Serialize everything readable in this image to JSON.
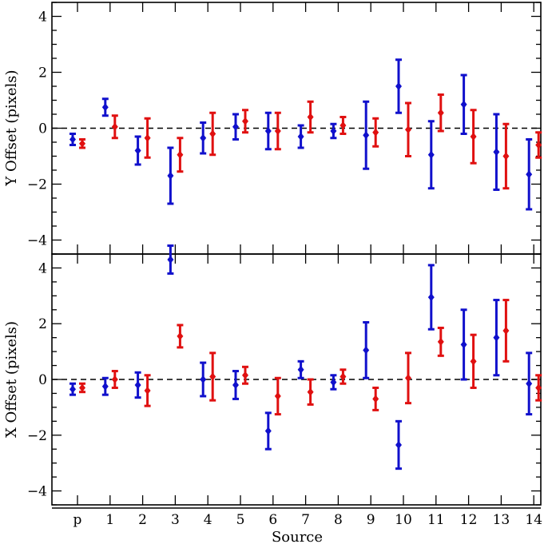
{
  "chart_data": [
    {
      "type": "scatter",
      "panel": "top",
      "ylabel": "Y Offset (pixels)",
      "xlabel": "",
      "ylim": [
        -4.5,
        4.5
      ],
      "yticks": [
        -4,
        -2,
        0,
        2,
        4
      ],
      "categories": [
        "p",
        "1",
        "2",
        "3",
        "4",
        "5",
        "6",
        "7",
        "8",
        "9",
        "10",
        "11",
        "12",
        "13",
        "14"
      ],
      "reference_line": 0,
      "series": [
        {
          "name": "blue",
          "color": "#1010cc",
          "values": [
            -0.4,
            0.75,
            -0.8,
            -1.7,
            -0.35,
            0.05,
            -0.1,
            -0.3,
            -0.1,
            -0.25,
            1.5,
            -0.95,
            0.85,
            -0.85,
            -1.65
          ],
          "errors": [
            0.2,
            0.3,
            0.5,
            1.0,
            0.55,
            0.45,
            0.65,
            0.4,
            0.25,
            1.2,
            0.95,
            1.2,
            1.05,
            1.35,
            1.25
          ]
        },
        {
          "name": "red",
          "color": "#e01010",
          "values": [
            -0.55,
            0.05,
            -0.35,
            -0.95,
            -0.2,
            0.25,
            -0.1,
            0.4,
            0.1,
            -0.15,
            -0.05,
            0.55,
            -0.3,
            -1.0,
            -0.6
          ],
          "errors": [
            0.15,
            0.4,
            0.7,
            0.6,
            0.75,
            0.4,
            0.65,
            0.55,
            0.3,
            0.5,
            0.95,
            0.65,
            0.95,
            1.15,
            0.45
          ]
        }
      ]
    },
    {
      "type": "scatter",
      "panel": "bottom",
      "ylabel": "X Offset (pixels)",
      "xlabel": "Source",
      "ylim": [
        -4.5,
        4.5
      ],
      "yticks": [
        -4,
        -2,
        0,
        2,
        4
      ],
      "categories": [
        "p",
        "1",
        "2",
        "3",
        "4",
        "5",
        "6",
        "7",
        "8",
        "9",
        "10",
        "11",
        "12",
        "13",
        "14"
      ],
      "reference_line": 0,
      "series": [
        {
          "name": "blue",
          "color": "#1010cc",
          "values": [
            -0.35,
            -0.25,
            -0.2,
            4.3,
            0.0,
            -0.2,
            -1.85,
            0.35,
            -0.1,
            1.05,
            -2.35,
            2.95,
            1.25,
            1.5,
            -0.15
          ],
          "errors": [
            0.2,
            0.3,
            0.45,
            0.5,
            0.6,
            0.5,
            0.65,
            0.3,
            0.25,
            1.0,
            0.85,
            1.15,
            1.25,
            1.35,
            1.1
          ]
        },
        {
          "name": "red",
          "color": "#e01010",
          "values": [
            -0.3,
            0.0,
            -0.4,
            1.55,
            0.1,
            0.15,
            -0.6,
            -0.45,
            0.1,
            -0.7,
            0.05,
            1.35,
            0.65,
            1.75,
            -0.3
          ],
          "errors": [
            0.15,
            0.3,
            0.55,
            0.4,
            0.85,
            0.3,
            0.65,
            0.45,
            0.25,
            0.4,
            0.9,
            0.5,
            0.95,
            1.1,
            0.45
          ]
        }
      ]
    }
  ]
}
